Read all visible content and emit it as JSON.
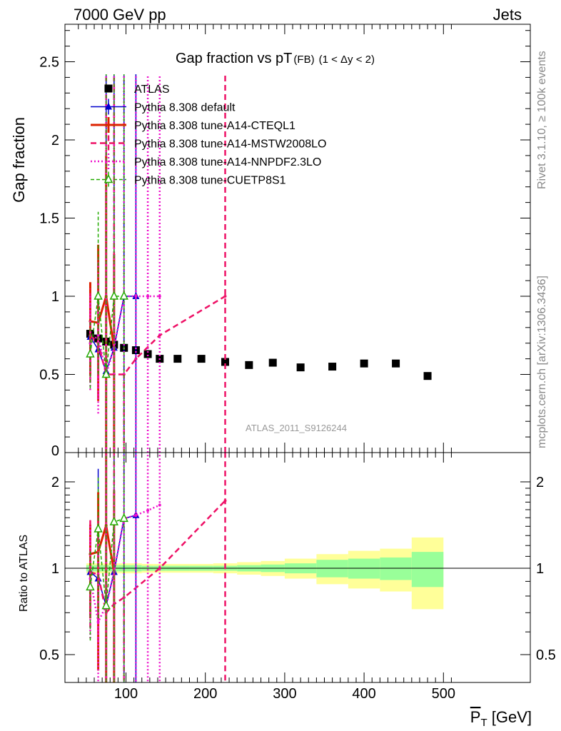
{
  "header": {
    "left_label": "7000 GeV pp",
    "right_label": "Jets",
    "right_side_rivet": "Rivet 3.1.10, ≥ 100k events",
    "right_side_mcplots": "mcplots.cern.ch [arXiv:1306.3436]",
    "watermark": "ATLAS_2011_S9126244"
  },
  "chart_data": [
    {
      "type": "scatter",
      "title": "Gap fraction vs pT",
      "title_sub": "(FB)",
      "title_range": "(1 < Δy < 2)",
      "xlabel": "P_T [GeV]",
      "ylabel": "Gap fraction",
      "xlim": [
        40,
        510
      ],
      "ylim": [
        0,
        2.75
      ],
      "yticks": [
        0.5,
        1,
        1.5,
        2,
        2.5
      ],
      "ytick_labels": [
        "0.5",
        "1",
        "1.5",
        "2",
        "2.5"
      ],
      "ytick_zero_label": "0",
      "legend_position": "top-left",
      "series": [
        {
          "name": "ATLAS",
          "style": "data",
          "color": "#000000",
          "x": [
            55,
            65,
            75,
            85,
            97.5,
            112.5,
            127.5,
            142.5,
            165,
            195,
            225,
            255,
            285,
            320,
            360,
            400,
            440,
            480
          ],
          "y": [
            0.76,
            0.73,
            0.71,
            0.69,
            0.67,
            0.655,
            0.63,
            0.6,
            0.6,
            0.6,
            0.58,
            0.56,
            0.575,
            0.545,
            0.55,
            0.57,
            0.57,
            0.49
          ]
        },
        {
          "name": "Pythia 8.308 default",
          "style": "solid",
          "color": "#0000cc",
          "marker": "triangle-filled",
          "x": [
            55,
            65,
            75,
            85,
            97.5,
            112.5
          ],
          "y": [
            0.74,
            0.66,
            0.52,
            0.67,
            1.0,
            1.0
          ],
          "yerr_lo": [
            0.2,
            0.15,
            0.52,
            0.67,
            1.0,
            1.0
          ],
          "yerr_hi": [
            0.25,
            0.3,
            1.9,
            1.75,
            1.42,
            1.42
          ]
        },
        {
          "name": "Pythia 8.308 tune-A14-CTEQL1",
          "style": "solid-thick",
          "color": "#dd2200",
          "marker": "none",
          "x": [
            55,
            65,
            75,
            85
          ],
          "y": [
            0.84,
            0.83,
            1.0,
            0.67
          ],
          "yerr_lo": [
            0.35,
            0.5,
            1.0,
            0.67
          ],
          "yerr_hi": [
            0.25,
            0.5,
            0.9,
            0.6
          ]
        },
        {
          "name": "Pythia 8.308 tune-A14-MSTW2008LO",
          "style": "dashed",
          "color": "#ee1166",
          "marker": "none",
          "x": [
            55,
            65,
            75,
            85,
            97.5,
            112.5,
            142.5,
            225
          ],
          "y": [
            0.75,
            0.7,
            0.5,
            0.5,
            0.5,
            0.6,
            0.75,
            1.0
          ],
          "yerr_lo": [
            0.3,
            0.35,
            0.5,
            0.5,
            0.5,
            0,
            0,
            1.0
          ],
          "yerr_hi": [
            0.3,
            0.4,
            1.9,
            1.9,
            0,
            0,
            0,
            1.42
          ]
        },
        {
          "name": "Pythia 8.308 tune-A14-NNPDF2.3LO",
          "style": "dotted",
          "color": "#ee11cc",
          "marker": "none",
          "x": [
            55,
            65,
            75,
            85,
            97.5,
            112.5,
            127.5,
            142.5
          ],
          "y": [
            0.7,
            0.75,
            0.5,
            0.67,
            1.0,
            1.0,
            1.0,
            1.0
          ],
          "yerr_lo": [
            0.3,
            0.5,
            0.5,
            0.67,
            1.0,
            1.0,
            1.0,
            1.0
          ],
          "yerr_hi": [
            0.3,
            0.5,
            1.92,
            1.75,
            1.42,
            1.42,
            1.42,
            1.42
          ]
        },
        {
          "name": "Pythia 8.308 tune-CUETP8S1",
          "style": "dashed-small",
          "color": "#22aa00",
          "marker": "triangle-open",
          "x": [
            55,
            65,
            75,
            85,
            97.5
          ],
          "y": [
            0.63,
            1.0,
            0.5,
            1.0,
            1.0
          ],
          "yerr_lo": [
            0.22,
            0.5,
            0.5,
            1.0,
            1.0
          ],
          "yerr_hi": [
            0.22,
            0.54,
            1.92,
            1.42,
            1.42
          ]
        }
      ]
    },
    {
      "type": "line",
      "ylabel": "Ratio to ATLAS",
      "xlabel": "P_T [GeV]",
      "xlim": [
        40,
        510
      ],
      "ylim": [
        0.4,
        2.35
      ],
      "yscale": "log",
      "yticks": [
        0.5,
        1,
        2
      ],
      "ytick_labels": [
        "0.5",
        "1",
        "2"
      ],
      "xticks": [
        100,
        200,
        300,
        400,
        500
      ],
      "xtick_labels": [
        "100",
        "200",
        "300",
        "400",
        "500"
      ],
      "band_edges": [
        50,
        60,
        70,
        80,
        90,
        105,
        120,
        135,
        150,
        180,
        210,
        240,
        270,
        300,
        340,
        380,
        420,
        460,
        500
      ],
      "band_inner": [
        0.025,
        0.025,
        0.025,
        0.025,
        0.025,
        0.025,
        0.02,
        0.02,
        0.02,
        0.02,
        0.02,
        0.025,
        0.03,
        0.04,
        0.07,
        0.08,
        0.09,
        0.14
      ],
      "band_outer": [
        0.04,
        0.04,
        0.04,
        0.04,
        0.04,
        0.04,
        0.035,
        0.035,
        0.035,
        0.035,
        0.04,
        0.05,
        0.06,
        0.08,
        0.12,
        0.15,
        0.17,
        0.28
      ],
      "series": [
        {
          "name": "Pythia 8.308 default",
          "color": "#0000cc",
          "style": "solid",
          "marker": "triangle-filled",
          "x": [
            55,
            65,
            75,
            85,
            97.5,
            112.5
          ],
          "y": [
            0.97,
            0.92,
            0.74,
            0.97,
            1.49,
            1.53
          ],
          "yerr_lo": [
            0.26,
            0.2,
            0.74,
            0.97,
            1.49,
            1.53
          ],
          "yerr_hi": [
            0.5,
            1.3,
            2.68,
            2.53,
            2.12,
            2.17
          ]
        },
        {
          "name": "Pythia 8.308 tune-A14-CTEQL1",
          "color": "#dd2200",
          "style": "solid-thick",
          "marker": "none",
          "x": [
            55,
            65,
            75,
            85
          ],
          "y": [
            1.12,
            1.14,
            1.41,
            0.97
          ],
          "yerr_lo": [
            0.45,
            0.7,
            1.41,
            0.97
          ],
          "yerr_hi": [
            0.3,
            0.7,
            1.3,
            0.9
          ]
        },
        {
          "name": "Pythia 8.308 tune-A14-MSTW2008LO",
          "color": "#ee1166",
          "style": "dashed",
          "marker": "none",
          "x": [
            55,
            65,
            75,
            85,
            97.5,
            142.5,
            225
          ],
          "y": [
            0.97,
            0.95,
            0.7,
            0.75,
            0.79,
            1.0,
            1.72
          ],
          "yerr_lo": [
            0.35,
            0.4,
            0.7,
            0.75,
            0.79,
            0,
            1.72
          ],
          "yerr_hi": [
            0.5,
            0.6,
            2.5,
            2.5,
            0,
            0,
            2.45
          ]
        },
        {
          "name": "Pythia 8.308 tune-A14-NNPDF2.3LO",
          "color": "#ee11cc",
          "style": "dotted",
          "marker": "none",
          "x": [
            55,
            65,
            75,
            85,
            97.5,
            112.5,
            127.5,
            142.5
          ],
          "y": [
            0.92,
            0.65,
            0.74,
            0.97,
            1.49,
            1.53,
            1.59,
            1.66
          ],
          "yerr_lo": [
            0.35,
            0.65,
            0.74,
            0.97,
            1.49,
            1.53,
            1.59,
            1.66
          ],
          "yerr_hi": [
            0.5,
            0.8,
            2.6,
            2.5,
            2.12,
            2.17,
            2.3,
            2.35
          ]
        },
        {
          "name": "Pythia 8.308 tune-CUETP8S1",
          "color": "#22aa00",
          "style": "dashed-small",
          "marker": "triangle-open",
          "x": [
            55,
            65,
            75,
            85,
            97.5
          ],
          "y": [
            0.86,
            1.37,
            0.74,
            1.45,
            1.49
          ],
          "yerr_lo": [
            0.3,
            0.7,
            0.74,
            1.45,
            1.49
          ],
          "yerr_hi": [
            0.3,
            0.7,
            2.6,
            2.1,
            2.12
          ]
        }
      ]
    }
  ]
}
